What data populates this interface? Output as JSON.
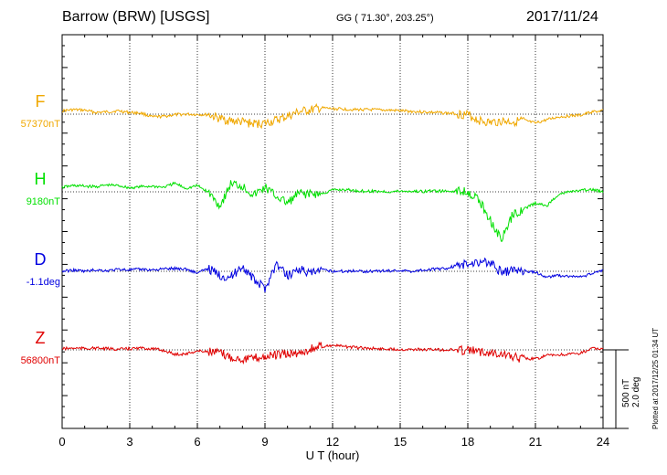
{
  "header": {
    "station": "Barrow (BRW)  [USGS]",
    "coords": "GG ( 71.30°, 203.25°)",
    "date": "2017/11/24"
  },
  "plotted_at": "Plotted at 2017/12/25 01:34 UT",
  "scale": {
    "nt": "500 nT",
    "deg": "2.0 deg"
  },
  "chart_data": {
    "type": "line",
    "xlabel": "U T (hour)",
    "xlim": [
      0,
      24
    ],
    "xticks": [
      "0",
      "3",
      "6",
      "9",
      "12",
      "15",
      "18",
      "21",
      "24"
    ],
    "grid": true,
    "y_scale_per_division": "500 nT / 2.0 deg",
    "series": [
      {
        "name": "F",
        "baseline": "57370nT",
        "color": "#f0a800",
        "x": [
          0,
          0.5,
          1,
          1.5,
          2,
          2.5,
          3,
          3.5,
          4,
          4.5,
          5,
          5.5,
          6,
          6.5,
          7,
          7.5,
          8,
          8.5,
          9,
          9.5,
          10,
          10.5,
          11,
          11.5,
          12,
          12.5,
          13,
          13.5,
          14,
          14.5,
          15,
          15.5,
          16,
          16.5,
          17,
          17.5,
          18,
          18.5,
          19,
          19.5,
          20,
          20.5,
          21,
          21.5,
          22,
          22.5,
          23,
          23.5,
          24
        ],
        "values": [
          60,
          80,
          70,
          30,
          40,
          60,
          30,
          20,
          -50,
          -40,
          -10,
          0,
          -5,
          -10,
          -80,
          -120,
          -140,
          -170,
          -160,
          -110,
          -40,
          40,
          70,
          110,
          95,
          90,
          80,
          80,
          75,
          70,
          60,
          50,
          40,
          30,
          20,
          10,
          -10,
          -110,
          -150,
          -120,
          -130,
          -110,
          -160,
          -100,
          -50,
          -30,
          -20,
          40,
          60
        ]
      },
      {
        "name": "H",
        "baseline": "9180nT",
        "color": "#00e000",
        "x": [
          0,
          0.5,
          1,
          1.5,
          2,
          2.5,
          3,
          3.5,
          4,
          4.5,
          5,
          5.5,
          6,
          6.5,
          7,
          7.5,
          8,
          8.5,
          9,
          9.5,
          10,
          10.5,
          11,
          11.5,
          12,
          12.5,
          13,
          13.5,
          14,
          14.5,
          15,
          15.5,
          16,
          16.5,
          17,
          17.5,
          18,
          18.5,
          19,
          19.5,
          20,
          20.5,
          21,
          21.5,
          22,
          22.5,
          23,
          23.5,
          24
        ],
        "values": [
          80,
          110,
          100,
          90,
          120,
          110,
          70,
          90,
          100,
          80,
          150,
          60,
          110,
          -10,
          -250,
          150,
          100,
          -60,
          80,
          -80,
          -200,
          -30,
          -40,
          -40,
          30,
          40,
          20,
          10,
          10,
          0,
          10,
          10,
          5,
          20,
          5,
          20,
          10,
          -150,
          -500,
          -850,
          -400,
          -300,
          -200,
          -250,
          -50,
          0,
          20,
          40,
          0
        ]
      },
      {
        "name": "D",
        "baseline": "-1.1deg",
        "color": "#0000e0",
        "x": [
          0,
          0.5,
          1,
          1.5,
          2,
          2.5,
          3,
          3.5,
          4,
          4.5,
          5,
          5.5,
          6,
          6.5,
          7,
          7.5,
          8,
          8.5,
          9,
          9.5,
          10,
          10.5,
          11,
          11.5,
          12,
          12.5,
          13,
          13.5,
          14,
          14.5,
          15,
          15.5,
          16,
          16.5,
          17,
          17.5,
          18,
          18.5,
          19,
          19.5,
          20,
          20.5,
          21,
          21.5,
          22,
          22.5,
          23,
          23.5,
          24
        ],
        "values": [
          0,
          0.08,
          0,
          0.1,
          0.04,
          0.14,
          0.1,
          0.14,
          0.1,
          0.16,
          0.2,
          0.16,
          -0.12,
          0.2,
          -0.3,
          -0.4,
          0.4,
          -0.6,
          -1.2,
          0.5,
          -0.3,
          0.2,
          -0.2,
          0.1,
          0.02,
          0,
          0.04,
          0,
          0.02,
          0.04,
          0.06,
          0,
          0.1,
          0.14,
          0.2,
          0.4,
          0.5,
          0.7,
          0.6,
          -0.1,
          0.1,
          0.04,
          -0.08,
          -0.4,
          -0.3,
          -0.35,
          -0.4,
          -0.2,
          0.1
        ]
      },
      {
        "name": "Z",
        "baseline": "56800nT",
        "color": "#e00000",
        "x": [
          0,
          0.5,
          1,
          1.5,
          2,
          2.5,
          3,
          3.5,
          4,
          4.5,
          5,
          5.5,
          6,
          6.5,
          7,
          7.5,
          8,
          8.5,
          9,
          9.5,
          10,
          10.5,
          11,
          11.5,
          12,
          12.5,
          13,
          13.5,
          14,
          14.5,
          15,
          15.5,
          16,
          16.5,
          17,
          17.5,
          18,
          18.5,
          19,
          19.5,
          20,
          20.5,
          21,
          21.5,
          22,
          22.5,
          23,
          23.5,
          24
        ],
        "values": [
          20,
          30,
          25,
          30,
          20,
          10,
          20,
          30,
          20,
          -10,
          -80,
          -70,
          -20,
          -30,
          -60,
          -130,
          -160,
          -150,
          -120,
          -90,
          -80,
          -60,
          10,
          60,
          80,
          60,
          40,
          30,
          20,
          15,
          10,
          10,
          5,
          5,
          0,
          0,
          -10,
          -30,
          -40,
          -60,
          -130,
          -150,
          -160,
          -100,
          -90,
          -80,
          -60,
          20,
          20
        ]
      }
    ]
  }
}
